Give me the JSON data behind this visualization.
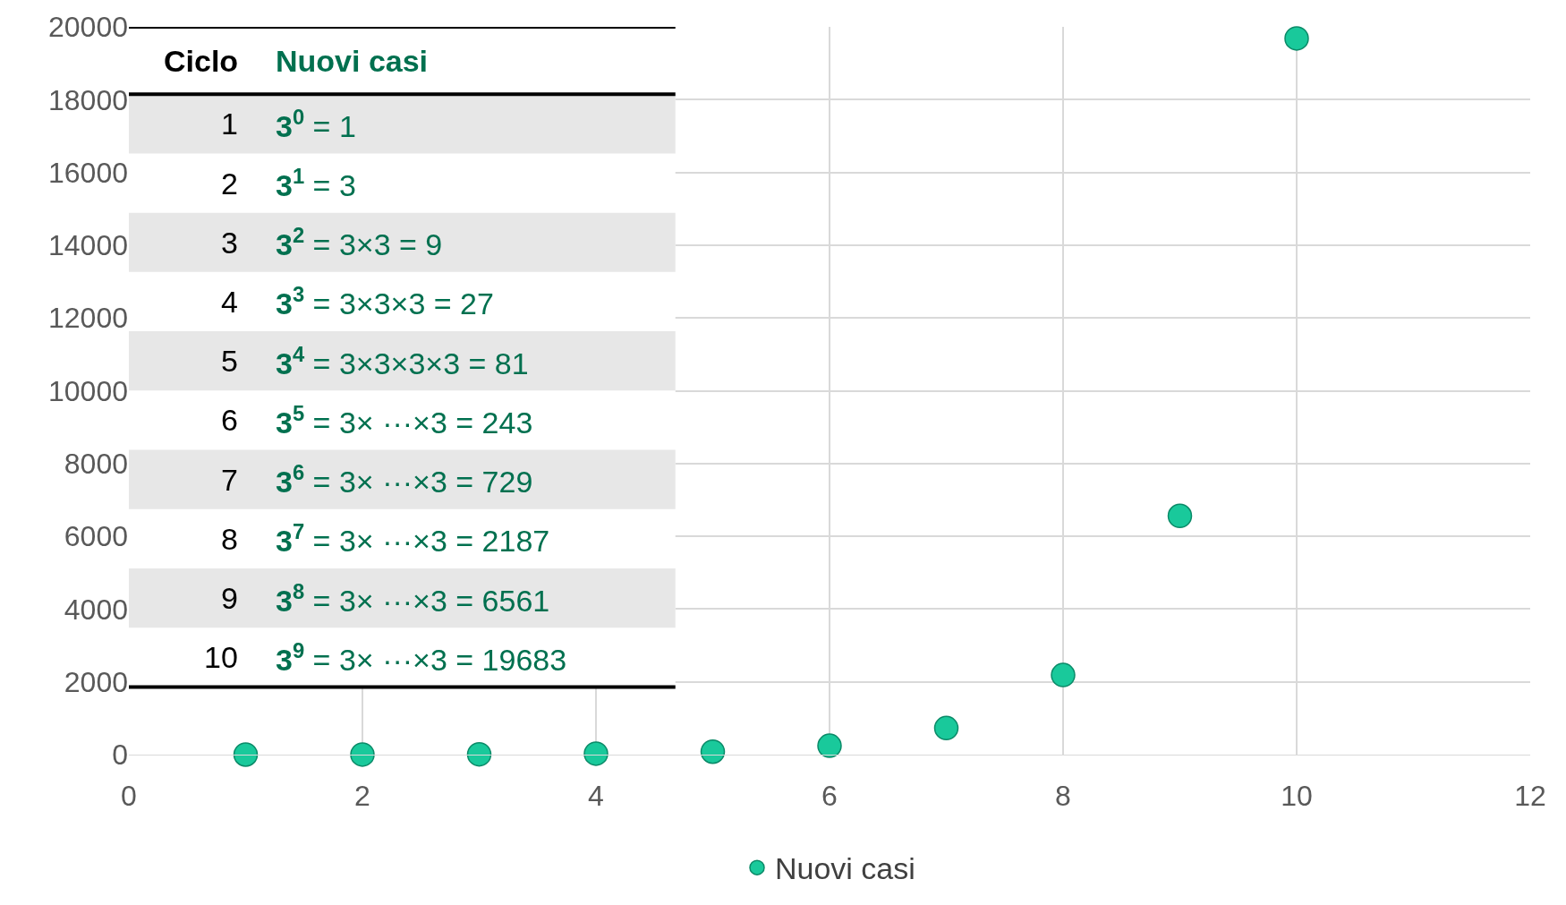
{
  "chart_data": {
    "type": "scatter",
    "annotations": [
      "Ciclo",
      "Nuovi casi",
      "1",
      "3$^{0}$ = 1",
      "2",
      "3$^{1}$ = 3",
      "3",
      "3$^{2}$ = 3×3 = 9",
      "4",
      "3$^{3}$ = 3×3×3 = 27",
      "5",
      "3$^{4}$ = 3×3×3×3 = 81",
      "6",
      "3$^{5}$ = 3× ···×3 = 243",
      "7",
      "3$^{6}$ = 3× ···×3 = 729",
      "8",
      "3$^{7}$ = 3× ···×3 = 2187",
      "9",
      "3$^{8}$ = 3× ···×3 = 6561",
      "10",
      "3$^{9}$ = 3× ···×3 = 19683"
    ],
    "x": [
      1,
      2,
      3,
      4,
      5,
      6,
      7,
      8,
      9,
      10
    ],
    "series": [
      {
        "name": "Nuovi casi",
        "color": "#19c99b",
        "values": [
          1,
          3,
          9,
          27,
          81,
          243,
          729,
          2187,
          6561,
          19683
        ]
      }
    ],
    "xlim": [
      0,
      12
    ],
    "xticks": [
      0,
      2,
      4,
      6,
      8,
      10,
      12
    ],
    "ylim": [
      0,
      20000
    ],
    "yticks": [
      0,
      2000,
      4000,
      6000,
      8000,
      10000,
      12000,
      14000,
      16000,
      18000,
      20000
    ],
    "grid": true,
    "legend": "bottom",
    "marker": "circle"
  }
}
